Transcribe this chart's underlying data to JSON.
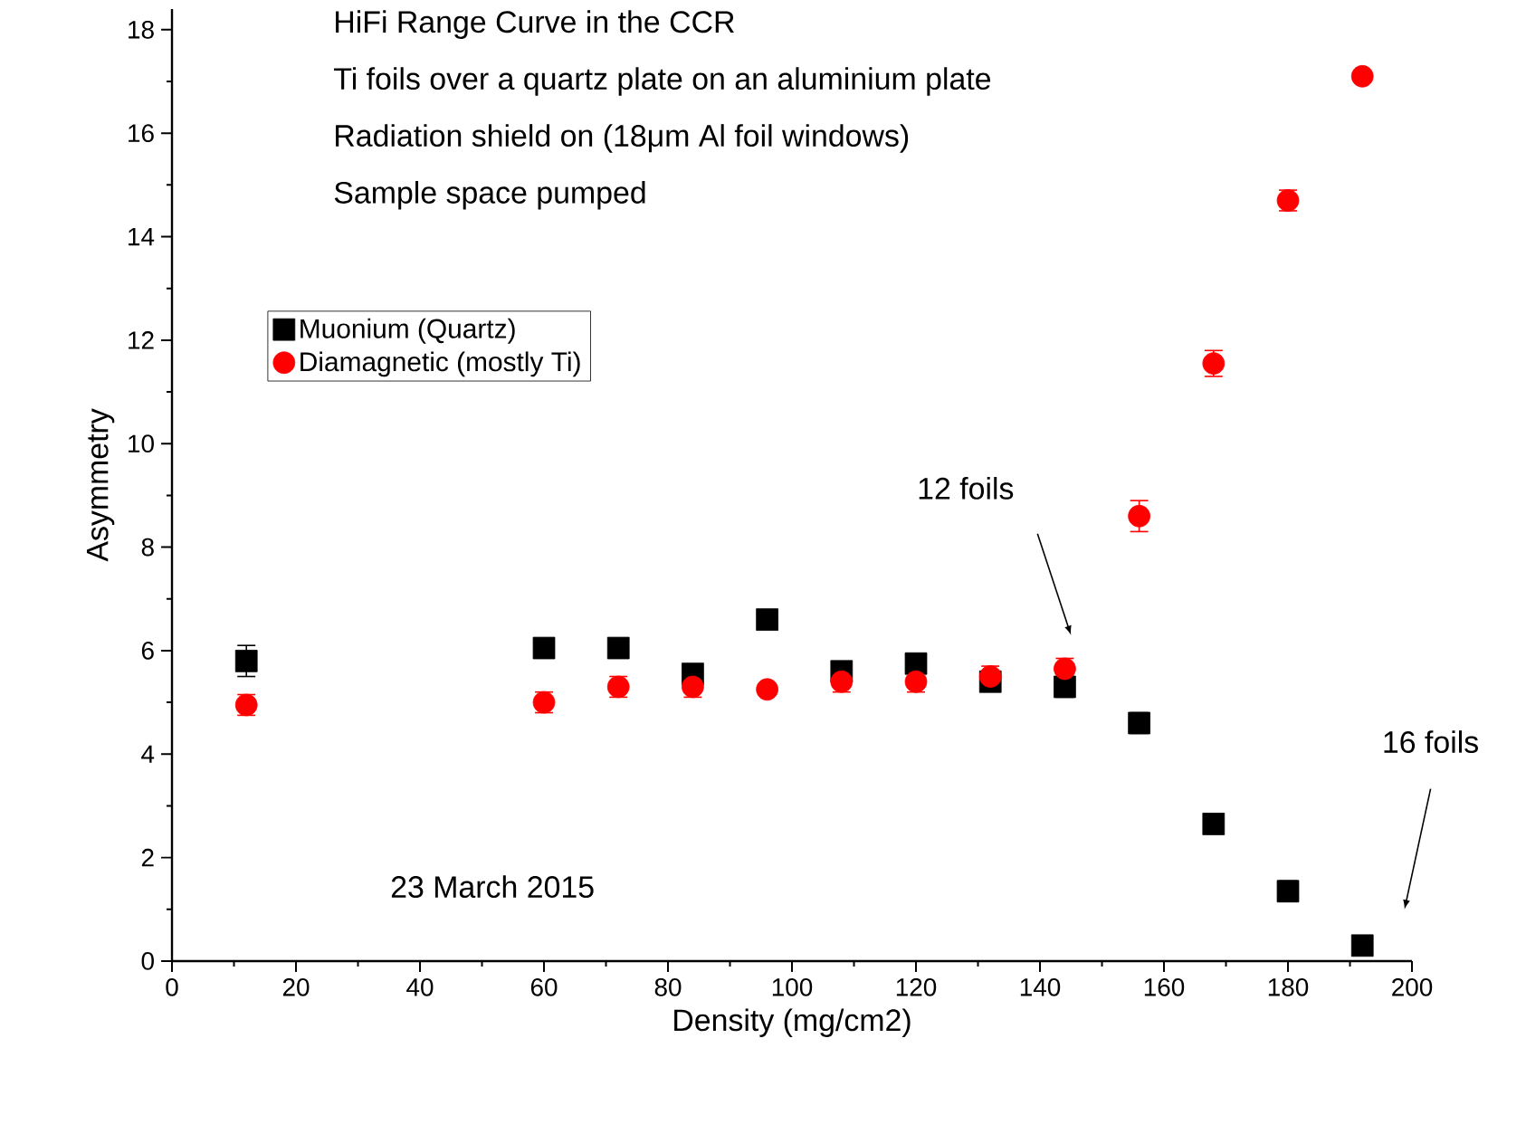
{
  "chart_data": {
    "type": "scatter",
    "title": "HiFi Range Curve in the CCR",
    "xlabel": "Density (mg/cm2)",
    "ylabel": "Asymmetry",
    "x": [
      12,
      60,
      72,
      84,
      96,
      108,
      120,
      132,
      144,
      156,
      168,
      180,
      192
    ],
    "series": [
      {
        "name": "Muonium (Quartz)",
        "color": "#000000",
        "marker": "square",
        "values": [
          5.8,
          6.05,
          6.05,
          5.55,
          6.6,
          5.6,
          5.75,
          5.4,
          5.3,
          4.6,
          2.65,
          1.35,
          0.3
        ],
        "errors": [
          0.3,
          0.15,
          0.15,
          0.15,
          0.1,
          0.15,
          0.15,
          0.15,
          0.2,
          0.2,
          0.15,
          0.2,
          0.1
        ]
      },
      {
        "name": "Diamagnetic (mostly Ti)",
        "color": "#ff0000",
        "marker": "circle",
        "values": [
          4.95,
          5.0,
          5.3,
          5.3,
          5.25,
          5.4,
          5.4,
          5.5,
          5.65,
          8.6,
          11.55,
          14.7,
          17.1
        ],
        "errors": [
          0.2,
          0.2,
          0.2,
          0.2,
          0.1,
          0.2,
          0.2,
          0.2,
          0.2,
          0.3,
          0.25,
          0.2,
          0.05
        ]
      }
    ],
    "xlim": [
      0,
      200
    ],
    "xticks": [
      0,
      20,
      40,
      60,
      80,
      100,
      120,
      140,
      160,
      180,
      200
    ],
    "ylim": [
      0,
      18.4
    ],
    "yticks": [
      0,
      2,
      4,
      6,
      8,
      10,
      12,
      14,
      16,
      18
    ],
    "legend": "top left",
    "grid": false,
    "annotations": [
      "Ti foils over a quartz plate on an aluminium plate",
      "Radiation shield on (18μm Al foil windows)",
      "Sample space pumped",
      "23 March 2015",
      "12 foils",
      "16 foils"
    ]
  }
}
